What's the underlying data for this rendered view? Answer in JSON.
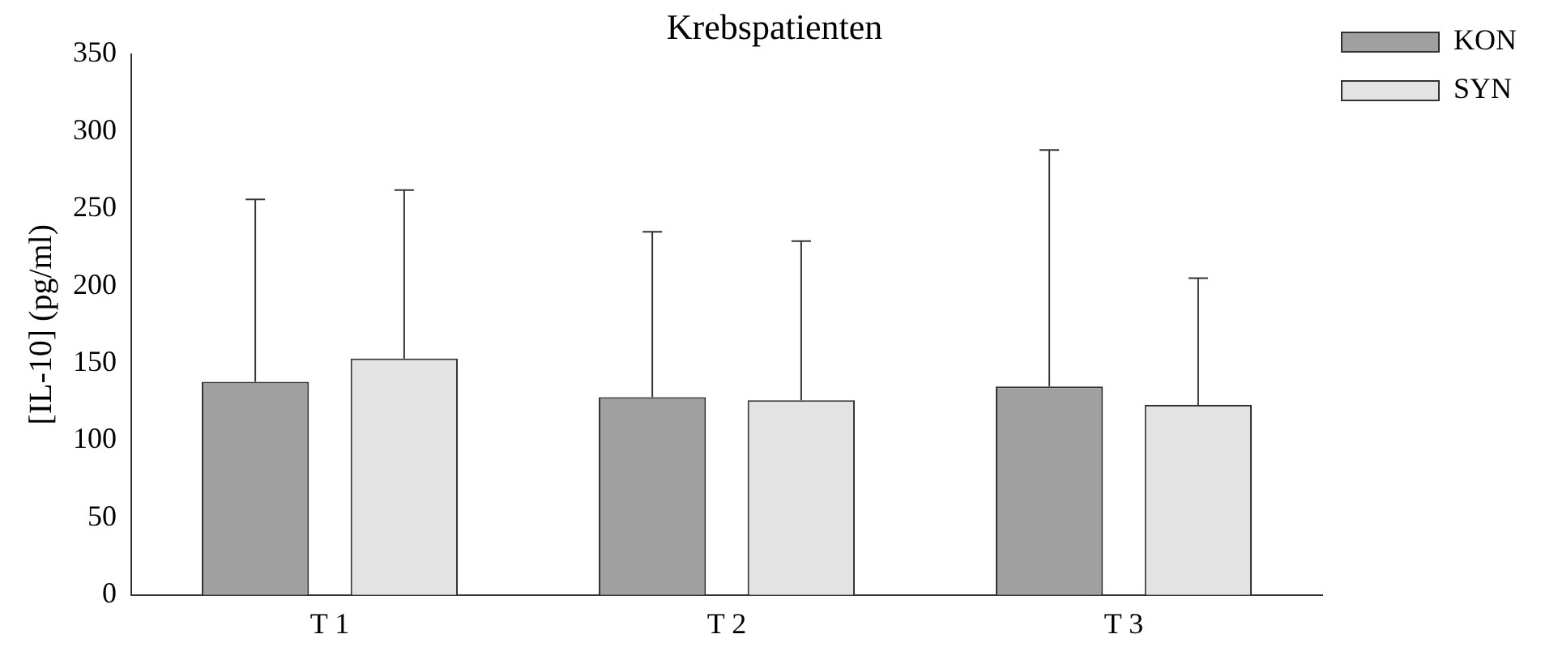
{
  "chart_data": {
    "type": "bar",
    "title": "Krebspatienten",
    "ylabel": "[IL-10] (pg/ml)",
    "categories": [
      "T 1",
      "T 2",
      "T 3"
    ],
    "series": [
      {
        "name": "KON",
        "color": "#a0a0a0",
        "values": [
          138,
          128,
          135
        ],
        "errors": [
          [
            138,
            256
          ],
          [
            128,
            235
          ],
          [
            135,
            288
          ]
        ]
      },
      {
        "name": "SYN",
        "color": "#e3e3e3",
        "values": [
          153,
          126,
          123
        ],
        "errors": [
          [
            153,
            262
          ],
          [
            126,
            229
          ],
          [
            123,
            205
          ]
        ]
      }
    ],
    "ylim": [
      0,
      350
    ],
    "yticks": [
      0,
      50,
      100,
      150,
      200,
      250,
      300,
      350
    ],
    "grid": false,
    "legend": "top right"
  }
}
